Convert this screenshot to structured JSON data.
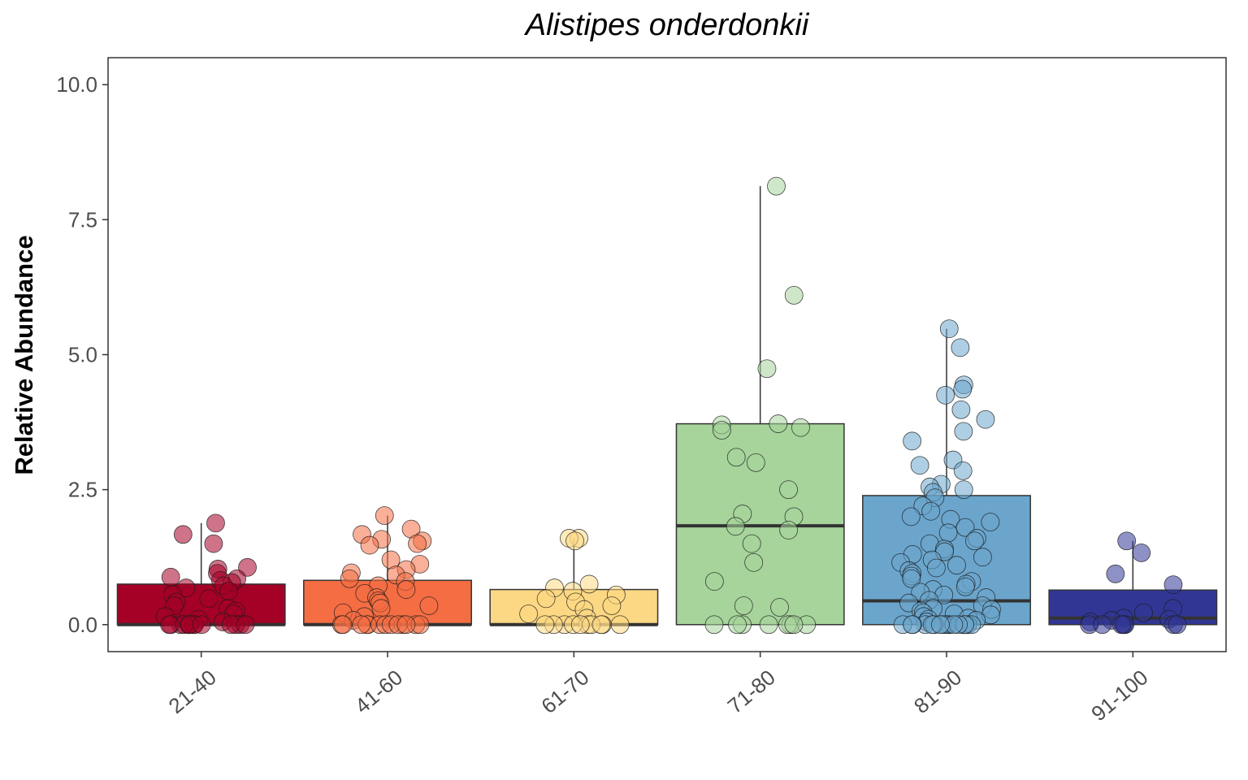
{
  "chart_data": {
    "type": "box",
    "title": "Alistipes onderdonkii",
    "xlabel": "",
    "ylabel": "Relative Abundance",
    "ylim": [
      -0.5,
      10.5
    ],
    "yticks": [
      "0.0",
      "2.5",
      "5.0",
      "7.5",
      "10.0"
    ],
    "categories": [
      "21-40",
      "41-60",
      "61-70",
      "71-80",
      "81-90",
      "91-100"
    ],
    "colors": [
      "#A50026",
      "#F46D43",
      "#FDD884",
      "#A6D49B",
      "#6BA5CC",
      "#313695"
    ],
    "legend": "none",
    "grid": false,
    "boxes": [
      {
        "category": "21-40",
        "q1": 0.0,
        "median": 0.0,
        "q3": 0.75,
        "whisker_low": 0.0,
        "whisker_high": 1.88
      },
      {
        "category": "41-60",
        "q1": 0.0,
        "median": 0.0,
        "q3": 0.82,
        "whisker_low": 0.0,
        "whisker_high": 2.02
      },
      {
        "category": "61-70",
        "q1": 0.0,
        "median": 0.0,
        "q3": 0.65,
        "whisker_low": 0.0,
        "whisker_high": 1.6
      },
      {
        "category": "71-80",
        "q1": 0.0,
        "median": 1.83,
        "q3": 3.72,
        "whisker_low": 0.0,
        "whisker_high": 8.12
      },
      {
        "category": "81-90",
        "q1": 0.0,
        "median": 0.44,
        "q3": 2.39,
        "whisker_low": 0.0,
        "whisker_high": 5.48
      },
      {
        "category": "91-100",
        "q1": 0.0,
        "median": 0.12,
        "q3": 0.64,
        "whisker_low": 0.0,
        "whisker_high": 1.55
      }
    ],
    "points": [
      {
        "category": "21-40",
        "values": [
          1.88,
          1.67,
          1.5,
          1.06,
          1.03,
          0.95,
          0.88,
          0.85,
          0.82,
          0.78,
          0.72,
          0.68,
          0.62,
          0.55,
          0.48,
          0.42,
          0.35,
          0.3,
          0.25,
          0.2,
          0.15,
          0.1,
          0.05,
          0.0,
          0.0,
          0.0,
          0.0,
          0.0,
          0.0,
          0.0,
          0.0,
          0.0,
          0.0,
          0.0,
          0.0,
          0.0,
          0.0
        ]
      },
      {
        "category": "41-60",
        "values": [
          2.02,
          1.77,
          1.67,
          1.58,
          1.55,
          1.5,
          1.47,
          1.2,
          1.12,
          1.02,
          0.96,
          0.92,
          0.85,
          0.8,
          0.72,
          0.65,
          0.58,
          0.5,
          0.44,
          0.4,
          0.35,
          0.3,
          0.22,
          0.15,
          0.08,
          0.0,
          0.0,
          0.0,
          0.0,
          0.0,
          0.0,
          0.0,
          0.0,
          0.0,
          0.0,
          0.0,
          0.0,
          0.0
        ]
      },
      {
        "category": "61-70",
        "values": [
          1.6,
          1.6,
          1.55,
          0.75,
          0.68,
          0.62,
          0.55,
          0.48,
          0.42,
          0.35,
          0.28,
          0.2,
          0.12,
          0.0,
          0.0,
          0.0,
          0.0,
          0.0,
          0.0,
          0.0,
          0.0,
          0.0,
          0.0
        ]
      },
      {
        "category": "71-80",
        "values": [
          8.12,
          6.1,
          4.74,
          3.72,
          3.7,
          3.65,
          3.6,
          3.1,
          3.0,
          2.5,
          2.05,
          2.0,
          1.82,
          1.75,
          1.5,
          1.15,
          0.8,
          0.35,
          0.32,
          0.0,
          0.0,
          0.0,
          0.0,
          0.0,
          0.0,
          0.0,
          0.0
        ]
      },
      {
        "category": "81-90",
        "values": [
          5.48,
          5.13,
          4.44,
          4.36,
          4.25,
          3.98,
          3.8,
          3.58,
          3.4,
          3.05,
          2.95,
          2.85,
          2.6,
          2.55,
          2.5,
          2.45,
          2.35,
          2.2,
          2.1,
          2.0,
          1.95,
          1.9,
          1.8,
          1.7,
          1.6,
          1.55,
          1.5,
          1.4,
          1.35,
          1.3,
          1.25,
          1.2,
          1.15,
          1.1,
          1.05,
          1.0,
          0.95,
          0.9,
          0.85,
          0.8,
          0.75,
          0.7,
          0.65,
          0.6,
          0.55,
          0.5,
          0.45,
          0.4,
          0.35,
          0.3,
          0.28,
          0.25,
          0.22,
          0.2,
          0.18,
          0.15,
          0.12,
          0.1,
          0.08,
          0.05,
          0.0,
          0.0,
          0.0,
          0.0,
          0.0,
          0.0,
          0.0,
          0.0,
          0.0,
          0.0,
          0.0,
          0.0,
          0.0,
          0.0,
          0.0,
          0.0,
          0.0,
          0.0
        ]
      },
      {
        "category": "91-100",
        "values": [
          1.55,
          1.33,
          0.94,
          0.74,
          0.3,
          0.22,
          0.12,
          0.1,
          0.08,
          0.05,
          0.0,
          0.0,
          0.0,
          0.0,
          0.0,
          0.0,
          0.0,
          0.0
        ]
      }
    ]
  }
}
